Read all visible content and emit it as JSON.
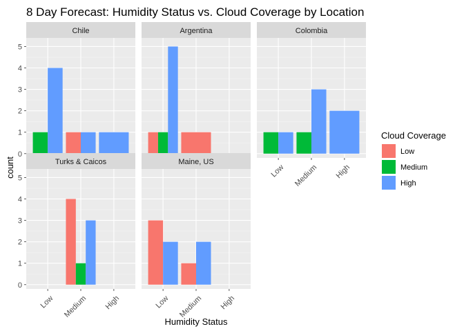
{
  "chart_data": {
    "type": "bar",
    "title": "8 Day Forecast: Humidity Status vs. Cloud Coverage by Location",
    "xlabel": "Humidity Status",
    "ylabel": "count",
    "categories": [
      "Low",
      "Medium",
      "High"
    ],
    "yticks": [
      "0",
      "1",
      "2",
      "3",
      "4",
      "5"
    ],
    "ylim": [
      0,
      5.4
    ],
    "grid": true,
    "legend": {
      "title": "Cloud Coverage",
      "position": "right",
      "entries": [
        {
          "name": "Low",
          "color": "#F8766D"
        },
        {
          "name": "Medium",
          "color": "#00BA38"
        },
        {
          "name": "High",
          "color": "#619CFF"
        }
      ]
    },
    "facets": [
      {
        "name": "Chile",
        "bars": {
          "Low": {
            "Medium": 1,
            "High": 4
          },
          "Medium": {
            "Low": 1,
            "High": 1
          },
          "High": {
            "High": 1
          }
        }
      },
      {
        "name": "Argentina",
        "bars": {
          "Low": {
            "Low": 1,
            "Medium": 1,
            "High": 5
          },
          "Medium": {
            "Low": 1
          },
          "High": {}
        }
      },
      {
        "name": "Colombia",
        "bars": {
          "Low": {
            "Medium": 1,
            "High": 1
          },
          "Medium": {
            "Medium": 1,
            "High": 3
          },
          "High": {
            "High": 2
          }
        }
      },
      {
        "name": "Turks & Caicos",
        "bars": {
          "Low": {},
          "Medium": {
            "Low": 4,
            "Medium": 1,
            "High": 3
          },
          "High": {}
        }
      },
      {
        "name": "Maine, US",
        "bars": {
          "Low": {
            "Low": 3,
            "High": 2
          },
          "Medium": {
            "Low": 1,
            "High": 2
          },
          "High": {}
        }
      }
    ]
  }
}
